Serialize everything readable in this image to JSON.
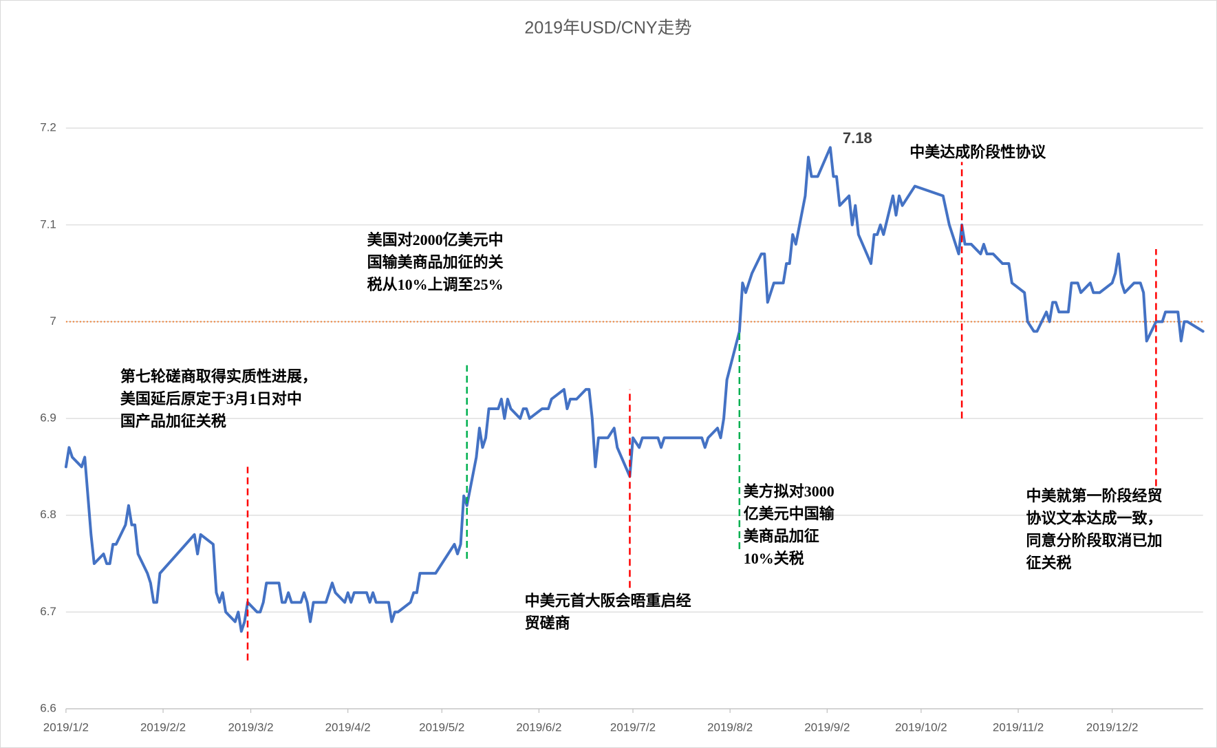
{
  "chart_data": {
    "type": "line",
    "title": "2019年USD/CNY走势",
    "color": "#4472c4",
    "x": [
      "2019/1/2",
      "2019/1/3",
      "2019/1/4",
      "2019/1/7",
      "2019/1/8",
      "2019/1/10",
      "2019/1/11",
      "2019/1/14",
      "2019/1/15",
      "2019/1/16",
      "2019/1/17",
      "2019/1/18",
      "2019/1/21",
      "2019/1/22",
      "2019/1/23",
      "2019/1/24",
      "2019/1/25",
      "2019/1/28",
      "2019/1/29",
      "2019/1/30",
      "2019/1/31",
      "2019/2/1",
      "2019/2/12",
      "2019/2/13",
      "2019/2/14",
      "2019/2/18",
      "2019/2/19",
      "2019/2/20",
      "2019/2/21",
      "2019/2/22",
      "2019/2/25",
      "2019/2/26",
      "2019/2/27",
      "2019/2/28",
      "2019/3/1",
      "2019/3/4",
      "2019/3/5",
      "2019/3/6",
      "2019/3/7",
      "2019/3/11",
      "2019/3/12",
      "2019/3/13",
      "2019/3/14",
      "2019/3/15",
      "2019/3/18",
      "2019/3/19",
      "2019/3/20",
      "2019/3/21",
      "2019/3/22",
      "2019/3/26",
      "2019/3/28",
      "2019/3/29",
      "2019/4/1",
      "2019/4/2",
      "2019/4/3",
      "2019/4/4",
      "2019/4/8",
      "2019/4/9",
      "2019/4/10",
      "2019/4/11",
      "2019/4/15",
      "2019/4/16",
      "2019/4/17",
      "2019/4/18",
      "2019/4/22",
      "2019/4/23",
      "2019/4/24",
      "2019/4/25",
      "2019/4/30",
      "2019/5/6",
      "2019/5/7",
      "2019/5/8",
      "2019/5/9",
      "2019/5/10",
      "2019/5/13",
      "2019/5/14",
      "2019/5/15",
      "2019/5/16",
      "2019/5/17",
      "2019/5/20",
      "2019/5/21",
      "2019/5/22",
      "2019/5/23",
      "2019/5/24",
      "2019/5/27",
      "2019/5/28",
      "2019/5/29",
      "2019/5/30",
      "2019/6/3",
      "2019/6/5",
      "2019/6/6",
      "2019/6/10",
      "2019/6/11",
      "2019/6/12",
      "2019/6/14",
      "2019/6/17",
      "2019/6/18",
      "2019/6/19",
      "2019/6/20",
      "2019/6/21",
      "2019/6/24",
      "2019/6/26",
      "2019/6/27",
      "2019/7/1",
      "2019/7/2",
      "2019/7/4",
      "2019/7/5",
      "2019/7/10",
      "2019/7/11",
      "2019/7/12",
      "2019/7/24",
      "2019/7/25",
      "2019/7/26",
      "2019/7/29",
      "2019/7/30",
      "2019/7/31",
      "2019/8/1",
      "2019/8/5",
      "2019/8/6",
      "2019/8/7",
      "2019/8/8",
      "2019/8/9",
      "2019/8/12",
      "2019/8/13",
      "2019/8/14",
      "2019/8/16",
      "2019/8/19",
      "2019/8/20",
      "2019/8/21",
      "2019/8/22",
      "2019/8/23",
      "2019/8/26",
      "2019/8/27",
      "2019/8/28",
      "2019/8/30",
      "2019/9/3",
      "2019/9/4",
      "2019/9/5",
      "2019/9/6",
      "2019/9/9",
      "2019/9/10",
      "2019/9/11",
      "2019/9/12",
      "2019/9/16",
      "2019/9/17",
      "2019/9/18",
      "2019/9/19",
      "2019/9/20",
      "2019/9/23",
      "2019/9/24",
      "2019/9/25",
      "2019/9/26",
      "2019/9/30",
      "2019/10/9",
      "2019/10/11",
      "2019/10/14",
      "2019/10/15",
      "2019/10/16",
      "2019/10/18",
      "2019/10/21",
      "2019/10/22",
      "2019/10/23",
      "2019/10/25",
      "2019/10/28",
      "2019/10/30",
      "2019/10/31",
      "2019/11/4",
      "2019/11/5",
      "2019/11/7",
      "2019/11/8",
      "2019/11/11",
      "2019/11/12",
      "2019/11/13",
      "2019/11/14",
      "2019/11/15",
      "2019/11/18",
      "2019/11/19",
      "2019/11/21",
      "2019/11/22",
      "2019/11/25",
      "2019/11/26",
      "2019/11/28",
      "2019/12/2",
      "2019/12/3",
      "2019/12/4",
      "2019/12/5",
      "2019/12/6",
      "2019/12/9",
      "2019/12/11",
      "2019/12/12",
      "2019/12/13",
      "2019/12/16",
      "2019/12/18",
      "2019/12/19",
      "2019/12/23",
      "2019/12/24",
      "2019/12/25",
      "2019/12/26",
      "2019/12/31"
    ],
    "values": [
      6.85,
      6.87,
      6.86,
      6.85,
      6.86,
      6.78,
      6.75,
      6.76,
      6.75,
      6.75,
      6.77,
      6.77,
      6.79,
      6.81,
      6.79,
      6.79,
      6.76,
      6.74,
      6.73,
      6.71,
      6.71,
      6.74,
      6.78,
      6.76,
      6.78,
      6.77,
      6.72,
      6.71,
      6.72,
      6.7,
      6.69,
      6.7,
      6.68,
      6.69,
      6.71,
      6.7,
      6.7,
      6.71,
      6.73,
      6.73,
      6.71,
      6.71,
      6.72,
      6.71,
      6.71,
      6.72,
      6.71,
      6.69,
      6.71,
      6.71,
      6.73,
      6.72,
      6.71,
      6.72,
      6.71,
      6.72,
      6.72,
      6.71,
      6.72,
      6.71,
      6.71,
      6.69,
      6.7,
      6.7,
      6.71,
      6.72,
      6.72,
      6.74,
      6.74,
      6.77,
      6.76,
      6.77,
      6.82,
      6.81,
      6.86,
      6.89,
      6.87,
      6.88,
      6.91,
      6.91,
      6.92,
      6.9,
      6.92,
      6.91,
      6.9,
      6.91,
      6.91,
      6.9,
      6.91,
      6.91,
      6.92,
      6.93,
      6.91,
      6.92,
      6.92,
      6.93,
      6.93,
      6.9,
      6.85,
      6.88,
      6.88,
      6.89,
      6.87,
      6.84,
      6.88,
      6.87,
      6.88,
      6.88,
      6.87,
      6.88,
      6.88,
      6.87,
      6.88,
      6.89,
      6.88,
      6.9,
      6.94,
      6.99,
      7.04,
      7.03,
      7.04,
      7.05,
      7.07,
      7.07,
      7.02,
      7.04,
      7.04,
      7.06,
      7.06,
      7.09,
      7.08,
      7.13,
      7.17,
      7.15,
      7.15,
      7.18,
      7.15,
      7.15,
      7.12,
      7.13,
      7.1,
      7.12,
      7.09,
      7.06,
      7.09,
      7.09,
      7.1,
      7.09,
      7.13,
      7.11,
      7.13,
      7.12,
      7.14,
      7.13,
      7.1,
      7.07,
      7.1,
      7.08,
      7.08,
      7.07,
      7.08,
      7.07,
      7.07,
      7.06,
      7.06,
      7.04,
      7.03,
      7.0,
      6.99,
      6.99,
      7.01,
      7.0,
      7.02,
      7.02,
      7.01,
      7.01,
      7.04,
      7.04,
      7.03,
      7.04,
      7.03,
      7.03,
      7.04,
      7.05,
      7.07,
      7.04,
      7.03,
      7.04,
      7.04,
      7.03,
      6.98,
      7.0,
      7.0,
      7.01,
      7.01,
      6.98,
      7.0,
      7.0,
      6.99
    ],
    "xlim": [
      "2019/1/2",
      "2019/12/31"
    ],
    "xticks": [
      "2019/1/2",
      "2019/2/2",
      "2019/3/2",
      "2019/4/2",
      "2019/5/2",
      "2019/6/2",
      "2019/7/2",
      "2019/8/2",
      "2019/9/2",
      "2019/10/2",
      "2019/11/2",
      "2019/12/2"
    ],
    "ylim": [
      6.6,
      7.2
    ],
    "yticks": [
      6.6,
      6.7,
      6.8,
      6.9,
      7,
      7.1,
      7.2
    ],
    "grid": true,
    "reference_line": {
      "value": 7,
      "color": "#ed7d31"
    },
    "peak_label": {
      "text": "7.18",
      "x": "2019/9/3",
      "y": 7.18
    },
    "annotations": [
      {
        "x": "2019/3/1",
        "from": 6.65,
        "to": 6.85,
        "color": "#ff0000",
        "text": [
          "第七轮磋商取得实质性进展，",
          "美国延后原定于3月1日对中",
          "国产品加征关税"
        ]
      },
      {
        "x": "2019/5/10",
        "from": 6.755,
        "to": 6.955,
        "color": "#00b050",
        "text": [
          "美国对2000亿美元中",
          "国输美商品加征的关",
          "税从10%上调至25%"
        ]
      },
      {
        "x": "2019/7/1",
        "from": 6.725,
        "to": 6.93,
        "color": "#ff0000",
        "text": [
          "中美元首大阪会晤重启经",
          "贸磋商"
        ]
      },
      {
        "x": "2019/8/5",
        "from": 6.765,
        "to": 6.99,
        "color": "#00b050",
        "text": [
          "美方拟对3000",
          "亿美元中国输",
          "美商品加征",
          "10%关税"
        ]
      },
      {
        "x": "2019/10/15",
        "from": 6.9,
        "to": 7.165,
        "color": "#ff0000",
        "text": [
          "中美达成阶段性协议"
        ]
      },
      {
        "x": "2019/12/16",
        "from": 6.83,
        "to": 7.075,
        "color": "#ff0000",
        "text": [
          "中美就第一阶段经贸",
          "协议文本达成一致，",
          "同意分阶段取消已加",
          "征关税"
        ]
      }
    ]
  }
}
